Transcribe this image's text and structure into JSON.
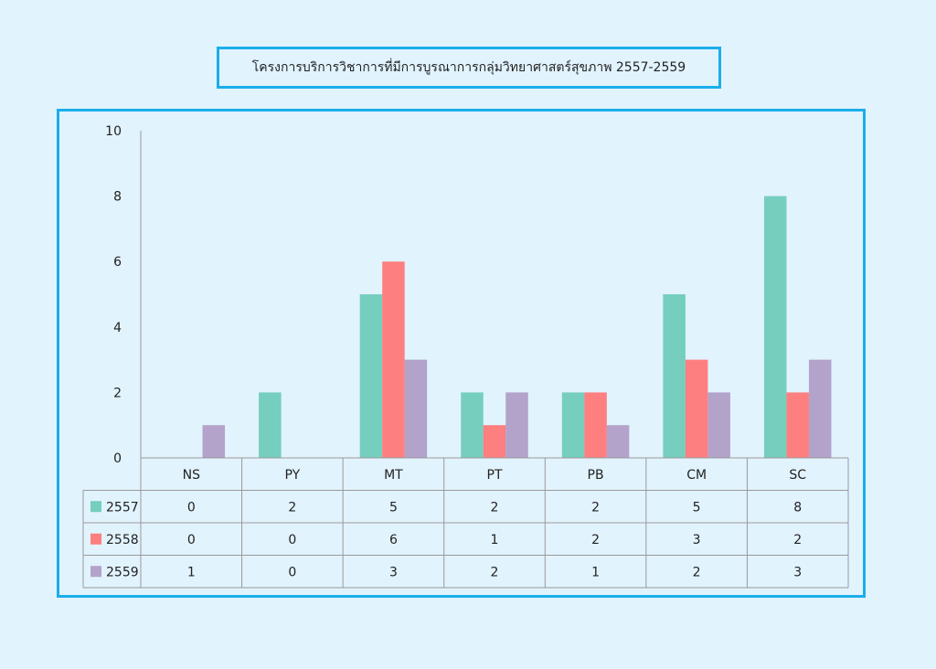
{
  "title": "โครงการบริการวิชาการที่มีการบูรณาการกลุ่มวิทยาศาสตร์สุขภาพ 2557-2559",
  "chart_data": {
    "type": "bar",
    "title": "โครงการบริการวิชาการที่มีการบูรณาการกลุ่มวิทยาศาสตร์สุขภาพ 2557-2559",
    "categories": [
      "NS",
      "PY",
      "MT",
      "PT",
      "PB",
      "CM",
      "SC"
    ],
    "series": [
      {
        "name": "2557",
        "color": "#75cebe",
        "values": [
          0,
          2,
          5,
          2,
          2,
          5,
          8
        ]
      },
      {
        "name": "2558",
        "color": "#fe7f7f",
        "values": [
          0,
          0,
          6,
          1,
          2,
          3,
          2
        ]
      },
      {
        "name": "2559",
        "color": "#b3a2c9",
        "values": [
          1,
          0,
          3,
          2,
          1,
          2,
          3
        ]
      }
    ],
    "yticks": [
      0,
      2,
      4,
      6,
      8,
      10
    ],
    "ylim": [
      0,
      10
    ],
    "xlabel": "",
    "ylabel": "",
    "data_table": true
  }
}
